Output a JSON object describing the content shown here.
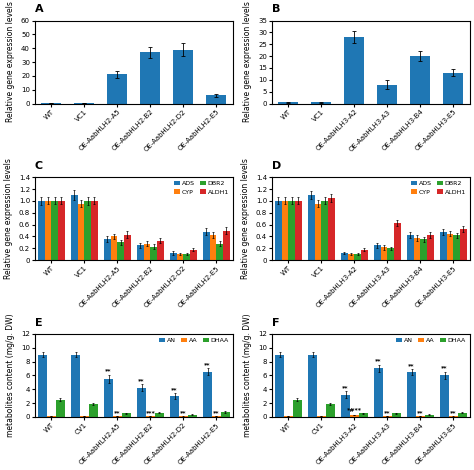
{
  "chart_data": [
    {
      "type": "bar",
      "title": "A",
      "categories": [
        "WT",
        "VC1",
        "OE-AabHLH2-A5",
        "OE-AabHLH2-B2",
        "OE-AabHLH2-D2",
        "OE-AabHLH2-E5"
      ],
      "values": [
        0.5,
        0.5,
        21,
        37,
        39,
        6
      ],
      "errors": [
        0.2,
        0.2,
        2.5,
        4,
        5,
        1
      ],
      "y_label": "Relative gene expression levels",
      "ylim": [
        0,
        60
      ],
      "yticks": [
        0,
        10,
        20,
        30,
        40,
        50,
        60
      ]
    },
    {
      "type": "bar",
      "title": "B",
      "categories": [
        "WT",
        "VC1",
        "OE-AabHLH3-A2",
        "OE-AabHLH3-A3",
        "OE-AabHLH3-B4",
        "OE-AabHLH3-E5"
      ],
      "values": [
        0.5,
        0.5,
        28,
        8,
        20,
        13
      ],
      "errors": [
        0.2,
        0.2,
        2.5,
        2,
        2,
        1.5
      ],
      "y_label": "Relative gene expression levels",
      "ylim": [
        0,
        35
      ],
      "yticks": [
        0,
        5,
        10,
        15,
        20,
        25,
        30,
        35
      ]
    },
    {
      "type": "bar",
      "title": "C",
      "categories": [
        "WT",
        "VC1",
        "OE-AabHLH2-A5",
        "OE-AabHLH2-B2",
        "OE-AabHLH2-D2",
        "OE-AabHLH2-E5"
      ],
      "series": [
        {
          "name": "ADS",
          "values": [
            1.0,
            1.1,
            0.35,
            0.25,
            0.12,
            0.48
          ],
          "errors": [
            0.07,
            0.08,
            0.05,
            0.04,
            0.03,
            0.06
          ]
        },
        {
          "name": "CYP",
          "values": [
            1.0,
            0.95,
            0.4,
            0.28,
            0.1,
            0.43
          ],
          "errors": [
            0.06,
            0.06,
            0.05,
            0.04,
            0.02,
            0.05
          ]
        },
        {
          "name": "DBR2",
          "values": [
            1.0,
            1.0,
            0.3,
            0.23,
            0.1,
            0.28
          ],
          "errors": [
            0.06,
            0.07,
            0.04,
            0.04,
            0.02,
            0.04
          ]
        },
        {
          "name": "ALDH1",
          "values": [
            1.0,
            1.0,
            0.43,
            0.33,
            0.18,
            0.5
          ],
          "errors": [
            0.06,
            0.06,
            0.06,
            0.04,
            0.03,
            0.06
          ]
        }
      ],
      "y_label": "Relative gene expression levels",
      "ylim": [
        0,
        1.4
      ],
      "yticks": [
        0,
        0.2,
        0.4,
        0.6,
        0.8,
        1.0,
        1.2,
        1.4
      ],
      "legend": "upper right"
    },
    {
      "type": "bar",
      "title": "D",
      "categories": [
        "WT",
        "VC1",
        "OE-AabHLH3-A2",
        "OE-AabHLH3-A3",
        "OE-AabHLH3-B4",
        "OE-AabHLH3-E5"
      ],
      "series": [
        {
          "name": "ADS",
          "values": [
            1.0,
            1.1,
            0.12,
            0.25,
            0.42,
            0.48
          ],
          "errors": [
            0.06,
            0.07,
            0.02,
            0.04,
            0.05,
            0.05
          ]
        },
        {
          "name": "CYP",
          "values": [
            1.0,
            0.95,
            0.1,
            0.22,
            0.38,
            0.45
          ],
          "errors": [
            0.06,
            0.06,
            0.02,
            0.04,
            0.05,
            0.04
          ]
        },
        {
          "name": "DBR2",
          "values": [
            1.0,
            1.0,
            0.1,
            0.2,
            0.35,
            0.42
          ],
          "errors": [
            0.06,
            0.06,
            0.02,
            0.03,
            0.04,
            0.04
          ]
        },
        {
          "name": "ALDH1",
          "values": [
            1.0,
            1.05,
            0.18,
            0.62,
            0.42,
            0.52
          ],
          "errors": [
            0.06,
            0.07,
            0.03,
            0.05,
            0.05,
            0.05
          ]
        }
      ],
      "y_label": "Relative gene expression levels",
      "ylim": [
        0,
        1.4
      ],
      "yticks": [
        0,
        0.2,
        0.4,
        0.6,
        0.8,
        1.0,
        1.2,
        1.4
      ],
      "legend": "upper right"
    },
    {
      "type": "bar",
      "title": "E",
      "categories": [
        "WT",
        "CV1",
        "OE-AabHLH2-A5",
        "OE-AabHLH2-B2",
        "OE-AabHLH2-D2",
        "OE-AabHLH2-E5"
      ],
      "series": [
        {
          "name": "AN",
          "values": [
            9.0,
            9.0,
            5.5,
            4.2,
            3.0,
            6.5
          ],
          "errors": [
            0.4,
            0.4,
            0.6,
            0.5,
            0.4,
            0.5
          ],
          "annotations": [
            null,
            null,
            "**",
            "**",
            "**",
            "**"
          ]
        },
        {
          "name": "AA",
          "values": [
            0.08,
            0.12,
            0.08,
            0.08,
            0.06,
            0.1
          ],
          "errors": [
            0.01,
            0.01,
            0.01,
            0.01,
            0.01,
            0.01
          ],
          "annotations": [
            null,
            null,
            "**",
            "***",
            "**",
            "**"
          ]
        },
        {
          "name": "DHAA",
          "values": [
            2.5,
            1.8,
            0.5,
            0.6,
            0.3,
            0.7
          ],
          "errors": [
            0.2,
            0.15,
            0.1,
            0.1,
            0.05,
            0.1
          ]
        }
      ],
      "y_label": "metabolites content (mg/g. DW)",
      "ylim": [
        0,
        12
      ],
      "yticks": [
        0,
        2,
        4,
        6,
        8,
        10,
        12
      ],
      "legend": "upper right"
    },
    {
      "type": "bar",
      "title": "F",
      "categories": [
        "WT",
        "CV1",
        "OE-AabHLH3-A2",
        "OE-AabHLH3-A3",
        "OE-AabHLH3-B4",
        "OE-AabHLH3-E5"
      ],
      "series": [
        {
          "name": "AN",
          "values": [
            9.0,
            9.0,
            3.2,
            7.0,
            6.5,
            6.0
          ],
          "errors": [
            0.4,
            0.4,
            0.5,
            0.5,
            0.4,
            0.5
          ],
          "annotations": [
            null,
            null,
            "**",
            "**",
            "**",
            "**"
          ]
        },
        {
          "name": "AA",
          "values": [
            0.08,
            0.1,
            0.3,
            0.08,
            0.08,
            0.06
          ],
          "errors": [
            0.01,
            0.01,
            0.04,
            0.01,
            0.01,
            0.01
          ],
          "annotations": [
            null,
            null,
            "*#**",
            "**",
            "**",
            "**"
          ]
        },
        {
          "name": "DHAA",
          "values": [
            2.5,
            1.8,
            0.5,
            0.5,
            0.3,
            0.6
          ],
          "errors": [
            0.2,
            0.15,
            0.1,
            0.1,
            0.05,
            0.1
          ]
        }
      ],
      "y_label": "metabolites content (mg/g. DW)",
      "ylim": [
        0,
        12
      ],
      "yticks": [
        0,
        2,
        4,
        6,
        8,
        10,
        12
      ],
      "legend": "upper right"
    }
  ]
}
